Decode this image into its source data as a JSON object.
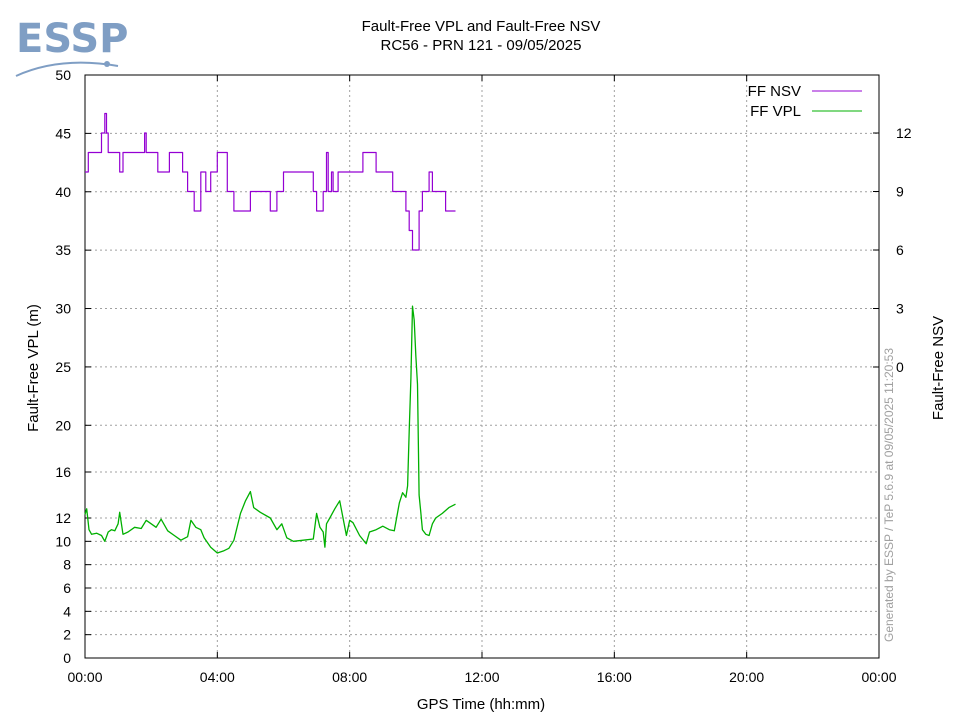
{
  "logo": {
    "text": "ESSP",
    "color": "#7f9ec4"
  },
  "generated": "Generated by ESSP / TeP 5.6.9 at 09/05/2025 11:20:53",
  "chart_data": {
    "type": "line",
    "title": "Fault-Free VPL and Fault-Free NSV",
    "subtitle": "RC56 - PRN 121 - 09/05/2025",
    "xlabel": "GPS Time (hh:mm)",
    "ylabel": "Fault-Free VPL (m)",
    "y2label": "Fault-Free NSV",
    "xlim": [
      0,
      24
    ],
    "x_unit": "hours",
    "x_ticks": [
      0,
      4,
      8,
      12,
      16,
      20,
      24
    ],
    "x_tick_labels": [
      "00:00",
      "04:00",
      "08:00",
      "12:00",
      "16:00",
      "20:00",
      "00:00"
    ],
    "ylim": [
      0,
      50
    ],
    "y_scale": "piecewise-linear",
    "y_ticks": [
      0,
      2,
      4,
      6,
      8,
      10,
      12,
      16,
      20,
      25,
      30,
      35,
      40,
      45,
      50
    ],
    "y_tick_labels": [
      "0",
      "2",
      "4",
      "6",
      "8",
      "10",
      "12",
      "16",
      "20",
      "25",
      "30",
      "35",
      "40",
      "45",
      "50"
    ],
    "y2_ticks": [
      0,
      3,
      6,
      9,
      12
    ],
    "y2_tick_labels": [
      "0",
      "3",
      "6",
      "9",
      "12"
    ],
    "grid": true,
    "legend_position": "top-right",
    "series": [
      {
        "name": "FF NSV",
        "axis": "y2",
        "color": "#9400d3",
        "step": true,
        "x": [
          0,
          0.1,
          0.5,
          0.6,
          0.65,
          0.7,
          0.75,
          0.9,
          1.05,
          1.15,
          1.8,
          1.85,
          1.95,
          2.2,
          2.55,
          2.95,
          3.1,
          3.3,
          3.5,
          3.65,
          3.8,
          4.0,
          4.3,
          4.5,
          5.0,
          5.6,
          5.8,
          6.0,
          6.9,
          7.0,
          7.2,
          7.3,
          7.35,
          7.45,
          7.5,
          7.65,
          7.95,
          8.4,
          8.8,
          9.3,
          9.6,
          9.7,
          9.8,
          9.9,
          10.1,
          10.2,
          10.4,
          10.5,
          10.9,
          11.2
        ],
        "values": [
          10,
          11,
          12,
          13,
          12,
          11,
          11,
          11,
          10,
          11,
          12,
          11,
          11,
          10,
          11,
          10,
          9,
          8,
          10,
          9,
          10,
          11,
          9,
          8,
          9,
          8,
          9,
          10,
          9,
          8,
          9,
          11,
          9,
          10,
          9,
          10,
          10,
          11,
          10,
          9,
          9,
          8,
          7,
          6,
          8,
          9,
          10,
          9,
          8,
          8
        ]
      },
      {
        "name": "FF VPL",
        "axis": "y",
        "color": "#00b000",
        "step": false,
        "x": [
          0,
          0.05,
          0.12,
          0.2,
          0.35,
          0.5,
          0.6,
          0.7,
          0.8,
          0.9,
          1.0,
          1.05,
          1.15,
          1.3,
          1.5,
          1.7,
          1.85,
          2.0,
          2.15,
          2.3,
          2.5,
          2.7,
          2.9,
          3.1,
          3.2,
          3.35,
          3.5,
          3.6,
          3.8,
          4.0,
          4.2,
          4.35,
          4.5,
          4.7,
          4.85,
          5.0,
          5.1,
          5.3,
          5.6,
          5.8,
          5.95,
          6.1,
          6.3,
          6.6,
          6.9,
          7.0,
          7.1,
          7.2,
          7.25,
          7.3,
          7.4,
          7.55,
          7.7,
          7.9,
          8.0,
          8.1,
          8.3,
          8.5,
          8.6,
          8.8,
          9.0,
          9.2,
          9.35,
          9.5,
          9.6,
          9.7,
          9.75,
          9.8,
          9.85,
          9.9,
          9.95,
          10.0,
          10.05,
          10.1,
          10.15,
          10.2,
          10.3,
          10.4,
          10.5,
          10.6,
          10.8,
          11.0,
          11.2
        ],
        "values": [
          12.3,
          12.8,
          11.0,
          10.6,
          10.7,
          10.5,
          10.0,
          10.8,
          11.0,
          10.9,
          11.5,
          12.5,
          10.6,
          10.8,
          11.2,
          11.1,
          11.8,
          11.5,
          11.2,
          11.9,
          10.9,
          10.5,
          10.1,
          10.4,
          11.8,
          11.2,
          11.0,
          10.3,
          9.5,
          9.0,
          9.2,
          9.4,
          10.1,
          12.4,
          13.5,
          14.3,
          12.9,
          12.5,
          12.0,
          11.0,
          11.5,
          10.3,
          10.0,
          10.1,
          10.2,
          12.4,
          11.2,
          10.8,
          9.5,
          11.5,
          12.0,
          12.8,
          13.5,
          10.5,
          11.8,
          11.6,
          10.5,
          9.8,
          10.8,
          11.0,
          11.3,
          11.0,
          10.9,
          13.3,
          14.2,
          13.8,
          14.8,
          19.5,
          24.0,
          30.2,
          29.0,
          26.0,
          23.5,
          14.0,
          12.5,
          11.0,
          10.6,
          10.5,
          11.5,
          12.0,
          12.4,
          12.9,
          13.2
        ]
      }
    ]
  }
}
